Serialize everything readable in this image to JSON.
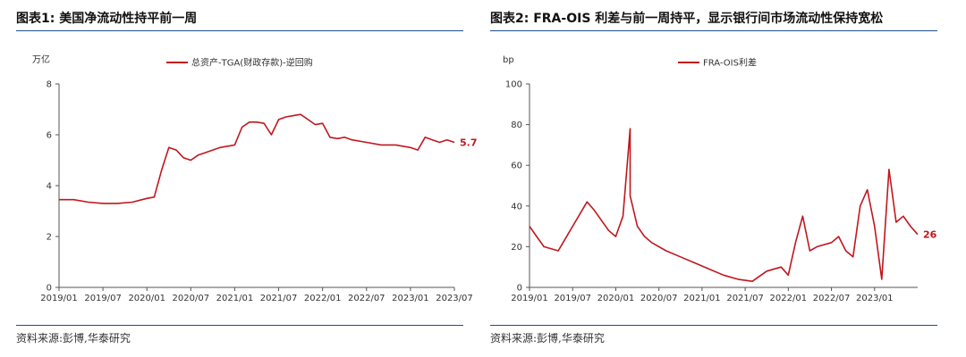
{
  "colors": {
    "line": "#c0171d",
    "rule": "#1f4e8c",
    "axis": "#555555"
  },
  "panel1": {
    "title": "图表1:  美国净流动性持平前一周",
    "source": "资料来源:彭博,华泰研究",
    "unit": "万亿",
    "legend": "总资产-TGA(财政存款)-逆回购",
    "end_label": "5.7"
  },
  "panel2": {
    "title": "图表2:  FRA-OIS 利差与前一周持平，显示银行间市场流动性保持宽松",
    "source": "资料来源:彭博,华泰研究",
    "unit": "bp",
    "legend": "FRA-OIS利差",
    "end_label": "26"
  },
  "chart_data": [
    {
      "type": "line",
      "title": "美国净流动性持平前一周",
      "ylabel": "万亿",
      "ylim": [
        0,
        8
      ],
      "yticks": [
        "0",
        "2",
        "4",
        "6",
        "8"
      ],
      "xlim": [
        "2019/01",
        "2023/07"
      ],
      "xticks": [
        "2019/01",
        "2019/07",
        "2020/01",
        "2020/07",
        "2021/01",
        "2021/07",
        "2022/01",
        "2022/07",
        "2023/01",
        "2023/07"
      ],
      "series": [
        {
          "name": "总资产-TGA(财政存款)-逆回购",
          "x": [
            "2019/01",
            "2019/03",
            "2019/05",
            "2019/07",
            "2019/09",
            "2019/11",
            "2020/01",
            "2020/02",
            "2020/03",
            "2020/04",
            "2020/05",
            "2020/06",
            "2020/07",
            "2020/08",
            "2020/09",
            "2020/11",
            "2021/01",
            "2021/02",
            "2021/03",
            "2021/04",
            "2021/05",
            "2021/06",
            "2021/07",
            "2021/08",
            "2021/09",
            "2021/10",
            "2021/11",
            "2021/12",
            "2022/01",
            "2022/02",
            "2022/03",
            "2022/04",
            "2022/05",
            "2022/07",
            "2022/09",
            "2022/11",
            "2023/01",
            "2023/02",
            "2023/03",
            "2023/04",
            "2023/05",
            "2023/06",
            "2023/07"
          ],
          "values": [
            3.45,
            3.45,
            3.35,
            3.3,
            3.3,
            3.35,
            3.5,
            3.55,
            4.6,
            5.5,
            5.4,
            5.1,
            5.0,
            5.2,
            5.3,
            5.5,
            5.6,
            6.3,
            6.5,
            6.5,
            6.45,
            6.0,
            6.6,
            6.7,
            6.75,
            6.8,
            6.6,
            6.4,
            6.45,
            5.9,
            5.85,
            5.9,
            5.8,
            5.7,
            5.6,
            5.6,
            5.5,
            5.4,
            5.9,
            5.8,
            5.7,
            5.8,
            5.7
          ]
        }
      ]
    },
    {
      "type": "line",
      "title": "FRA-OIS 利差与前一周持平，显示银行间市场流动性保持宽松",
      "ylabel": "bp",
      "ylim": [
        0,
        100
      ],
      "yticks": [
        "0",
        "20",
        "40",
        "60",
        "80",
        "100"
      ],
      "xlim": [
        "2019/01",
        "2023/07"
      ],
      "xticks": [
        "2019/01",
        "2019/07",
        "2020/01",
        "2020/07",
        "2021/01",
        "2021/07",
        "2022/01",
        "2022/07",
        "2023/01"
      ],
      "series": [
        {
          "name": "FRA-OIS利差",
          "x": [
            "2019/01",
            "2019/02",
            "2019/03",
            "2019/05",
            "2019/07",
            "2019/09",
            "2019/10",
            "2019/12",
            "2020/01",
            "2020/02",
            "2020/03",
            "2020/03",
            "2020/04",
            "2020/05",
            "2020/06",
            "2020/08",
            "2020/10",
            "2020/12",
            "2021/02",
            "2021/04",
            "2021/06",
            "2021/08",
            "2021/10",
            "2021/12",
            "2022/01",
            "2022/02",
            "2022/03",
            "2022/04",
            "2022/05",
            "2022/07",
            "2022/08",
            "2022/09",
            "2022/10",
            "2022/11",
            "2022/12",
            "2023/01",
            "2023/02",
            "2023/03",
            "2023/04",
            "2023/05",
            "2023/06",
            "2023/07"
          ],
          "values": [
            30,
            25,
            20,
            18,
            30,
            42,
            38,
            28,
            25,
            35,
            78,
            45,
            30,
            25,
            22,
            18,
            15,
            12,
            9,
            6,
            4,
            3,
            8,
            10,
            6,
            22,
            35,
            18,
            20,
            22,
            25,
            18,
            15,
            40,
            48,
            30,
            4,
            58,
            32,
            35,
            30,
            26
          ]
        }
      ]
    }
  ]
}
